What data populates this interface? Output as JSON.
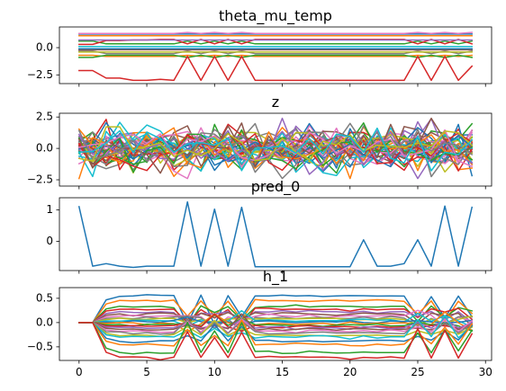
{
  "figure": {
    "palette": [
      "#1f77b4",
      "#ff7f0e",
      "#2ca02c",
      "#d62728",
      "#9467bd",
      "#8c564b",
      "#e377c2",
      "#7f7f7f",
      "#bcbd22",
      "#17becf"
    ]
  },
  "chart_data": [
    {
      "type": "line",
      "title": "theta_mu_temp",
      "x": [
        0,
        1,
        2,
        3,
        4,
        5,
        6,
        7,
        8,
        9,
        10,
        11,
        12,
        13,
        14,
        15,
        16,
        17,
        18,
        19,
        20,
        21,
        22,
        23,
        24,
        25,
        26,
        27,
        28,
        29
      ],
      "ylim": [
        -3.3,
        1.9
      ],
      "yticks": [
        -2.5,
        0.0
      ],
      "ytick_labels": [
        "−2.5",
        "0.0"
      ],
      "show_xtick_labels": false,
      "grid": false,
      "series": [
        {
          "values": [
            1.25,
            1.25,
            1.25,
            1.25,
            1.25,
            1.25,
            1.25,
            1.25,
            1.25,
            1.25,
            1.25,
            1.25,
            1.25,
            1.25,
            1.25,
            1.25,
            1.25,
            1.25,
            1.25,
            1.25,
            1.25,
            1.25,
            1.25,
            1.25,
            1.25,
            1.25,
            1.25,
            1.25,
            1.25,
            1.25
          ]
        },
        {
          "values": [
            1.1,
            1.1,
            1.1,
            1.1,
            1.1,
            1.1,
            1.1,
            1.1,
            1.1,
            1.1,
            1.1,
            1.1,
            1.1,
            1.1,
            1.1,
            1.1,
            1.1,
            1.1,
            1.1,
            1.1,
            1.1,
            1.1,
            1.1,
            1.1,
            1.1,
            1.1,
            1.1,
            1.1,
            1.1,
            1.1
          ]
        },
        {
          "values": [
            0.6,
            0.6,
            0.35,
            0.35,
            0.35,
            0.35,
            0.35,
            0.35,
            0.6,
            0.35,
            0.6,
            0.35,
            0.6,
            0.35,
            0.35,
            0.35,
            0.35,
            0.35,
            0.35,
            0.35,
            0.35,
            0.35,
            0.35,
            0.35,
            0.35,
            0.6,
            0.35,
            0.6,
            0.35,
            0.6
          ]
        },
        {
          "values": [
            0.3,
            0.3,
            0.65,
            0.65,
            0.7,
            0.7,
            0.75,
            0.75,
            0.35,
            0.75,
            0.35,
            0.75,
            0.35,
            0.75,
            0.75,
            0.75,
            0.75,
            0.75,
            0.75,
            0.75,
            0.75,
            0.75,
            0.75,
            0.75,
            0.75,
            0.35,
            0.75,
            0.35,
            0.75,
            0.35
          ]
        },
        {
          "values": [
            0.7,
            0.7,
            0.7,
            0.7,
            0.7,
            0.7,
            0.7,
            0.7,
            0.7,
            0.7,
            0.7,
            0.7,
            0.7,
            0.7,
            0.7,
            0.7,
            0.7,
            0.7,
            0.7,
            0.7,
            0.7,
            0.7,
            0.7,
            0.7,
            0.7,
            0.7,
            0.7,
            0.7,
            0.7,
            0.7
          ]
        },
        {
          "values": [
            -0.2,
            -0.2,
            -0.2,
            -0.2,
            -0.2,
            -0.2,
            -0.2,
            -0.2,
            -0.2,
            -0.2,
            -0.2,
            -0.2,
            -0.2,
            -0.2,
            -0.2,
            -0.2,
            -0.2,
            -0.2,
            -0.2,
            -0.2,
            -0.2,
            -0.2,
            -0.2,
            -0.2,
            -0.2,
            -0.2,
            -0.2,
            -0.2,
            -0.2,
            -0.2
          ]
        },
        {
          "values": [
            1.3,
            1.3,
            1.3,
            1.3,
            1.3,
            1.3,
            1.3,
            1.3,
            1.4,
            1.3,
            1.4,
            1.3,
            1.4,
            1.3,
            1.3,
            1.3,
            1.3,
            1.3,
            1.3,
            1.3,
            1.3,
            1.3,
            1.3,
            1.3,
            1.3,
            1.4,
            1.3,
            1.4,
            1.3,
            1.4
          ]
        },
        {
          "values": [
            -0.3,
            -0.3,
            -0.55,
            -0.55,
            -0.55,
            -0.55,
            -0.55,
            -0.55,
            -0.3,
            -0.55,
            -0.3,
            -0.55,
            -0.3,
            -0.55,
            -0.55,
            -0.55,
            -0.55,
            -0.55,
            -0.55,
            -0.55,
            -0.55,
            -0.55,
            -0.55,
            -0.55,
            -0.55,
            -0.3,
            -0.55,
            -0.3,
            -0.55,
            -0.3
          ]
        },
        {
          "values": [
            -0.4,
            -0.4,
            -0.4,
            -0.4,
            -0.4,
            -0.4,
            -0.4,
            -0.4,
            -0.4,
            -0.4,
            -0.4,
            -0.4,
            -0.4,
            -0.4,
            -0.4,
            -0.4,
            -0.4,
            -0.4,
            -0.4,
            -0.4,
            -0.4,
            -0.4,
            -0.4,
            -0.4,
            -0.4,
            -0.4,
            -0.4,
            -0.4,
            -0.4,
            -0.4
          ]
        },
        {
          "values": [
            0.1,
            0.1,
            0.1,
            0.1,
            0.1,
            0.1,
            0.1,
            0.1,
            0.1,
            0.1,
            0.1,
            0.1,
            0.1,
            0.1,
            0.1,
            0.1,
            0.1,
            0.1,
            0.1,
            0.1,
            0.1,
            0.1,
            0.1,
            0.1,
            0.1,
            0.1,
            0.1,
            0.1,
            0.1,
            0.1
          ]
        },
        {
          "values": [
            -0.1,
            -0.1,
            -0.1,
            -0.1,
            -0.1,
            -0.1,
            -0.1,
            -0.1,
            -0.1,
            -0.1,
            -0.1,
            -0.1,
            -0.1,
            -0.1,
            -0.1,
            -0.1,
            -0.1,
            -0.1,
            -0.1,
            -0.1,
            -0.1,
            -0.1,
            -0.1,
            -0.1,
            -0.1,
            -0.1,
            -0.1,
            -0.1,
            -0.1,
            -0.1
          ]
        },
        {
          "values": [
            -0.7,
            -0.7,
            -0.8,
            -0.8,
            -0.8,
            -0.8,
            -0.8,
            -0.8,
            -0.7,
            -0.8,
            -0.7,
            -0.8,
            -0.7,
            -0.8,
            -0.8,
            -0.8,
            -0.8,
            -0.8,
            -0.8,
            -0.8,
            -0.8,
            -0.8,
            -0.8,
            -0.8,
            -0.8,
            -0.7,
            -0.8,
            -0.7,
            -0.8,
            -0.7
          ]
        },
        {
          "values": [
            -0.9,
            -0.9,
            -0.7,
            -0.7,
            -0.7,
            -0.7,
            -0.7,
            -0.7,
            -0.9,
            -0.7,
            -0.9,
            -0.7,
            -0.9,
            -0.7,
            -0.7,
            -0.7,
            -0.7,
            -0.7,
            -0.7,
            -0.7,
            -0.7,
            -0.7,
            -0.7,
            -0.7,
            -0.7,
            -0.9,
            -0.7,
            -0.9,
            -0.7,
            -0.9
          ]
        },
        {
          "values": [
            -2.1,
            -2.1,
            -2.8,
            -2.8,
            -3.0,
            -3.0,
            -2.9,
            -3.0,
            -0.8,
            -3.0,
            -0.8,
            -3.0,
            -0.8,
            -3.0,
            -3.0,
            -3.0,
            -3.0,
            -3.0,
            -3.0,
            -3.0,
            -3.0,
            -3.0,
            -3.0,
            -3.0,
            -3.0,
            -0.8,
            -3.0,
            -0.8,
            -3.0,
            -1.7
          ]
        }
      ]
    },
    {
      "type": "line",
      "title": "z",
      "x": [
        0,
        1,
        2,
        3,
        4,
        5,
        6,
        7,
        8,
        9,
        10,
        11,
        12,
        13,
        14,
        15,
        16,
        17,
        18,
        19,
        20,
        21,
        22,
        23,
        24,
        25,
        26,
        27,
        28,
        29
      ],
      "ylim": [
        -3.0,
        2.8
      ],
      "yticks": [
        -2.5,
        0.0,
        2.5
      ],
      "ytick_labels": [
        "−2.5",
        "0.0",
        "2.5"
      ],
      "show_xtick_labels": false,
      "grid": false,
      "series": []
    },
    {
      "type": "line",
      "title": "pred_0",
      "x": [
        0,
        1,
        2,
        3,
        4,
        5,
        6,
        7,
        8,
        9,
        10,
        11,
        12,
        13,
        14,
        15,
        16,
        17,
        18,
        19,
        20,
        21,
        22,
        23,
        24,
        25,
        26,
        27,
        28,
        29
      ],
      "ylim": [
        -0.92,
        1.38
      ],
      "yticks": [
        0,
        1
      ],
      "ytick_labels": [
        "0",
        "1"
      ],
      "show_xtick_labels": false,
      "grid": false,
      "series": [
        {
          "values": [
            1.1,
            -0.78,
            -0.7,
            -0.78,
            -0.82,
            -0.78,
            -0.78,
            -0.78,
            1.25,
            -0.78,
            1.02,
            -0.78,
            1.08,
            -0.8,
            -0.8,
            -0.8,
            -0.8,
            -0.8,
            -0.8,
            -0.8,
            -0.8,
            0.05,
            -0.78,
            -0.78,
            -0.7,
            0.05,
            -0.78,
            1.12,
            -0.78,
            1.08
          ]
        }
      ]
    },
    {
      "type": "line",
      "title": "h_1",
      "x": [
        0,
        1,
        2,
        3,
        4,
        5,
        6,
        7,
        8,
        9,
        10,
        11,
        12,
        13,
        14,
        15,
        16,
        17,
        18,
        19,
        20,
        21,
        22,
        23,
        24,
        25,
        26,
        27,
        28,
        29
      ],
      "ylim": [
        -0.78,
        0.72
      ],
      "yticks": [
        -0.5,
        0.0,
        0.5
      ],
      "ytick_labels": [
        "−0.5",
        "0.0",
        "0.5"
      ],
      "xticks": [
        0,
        5,
        10,
        15,
        20,
        25,
        30
      ],
      "xtick_labels": [
        "0",
        "5",
        "10",
        "15",
        "20",
        "25",
        "30"
      ],
      "show_xtick_labels": true,
      "grid": false,
      "series": []
    }
  ]
}
